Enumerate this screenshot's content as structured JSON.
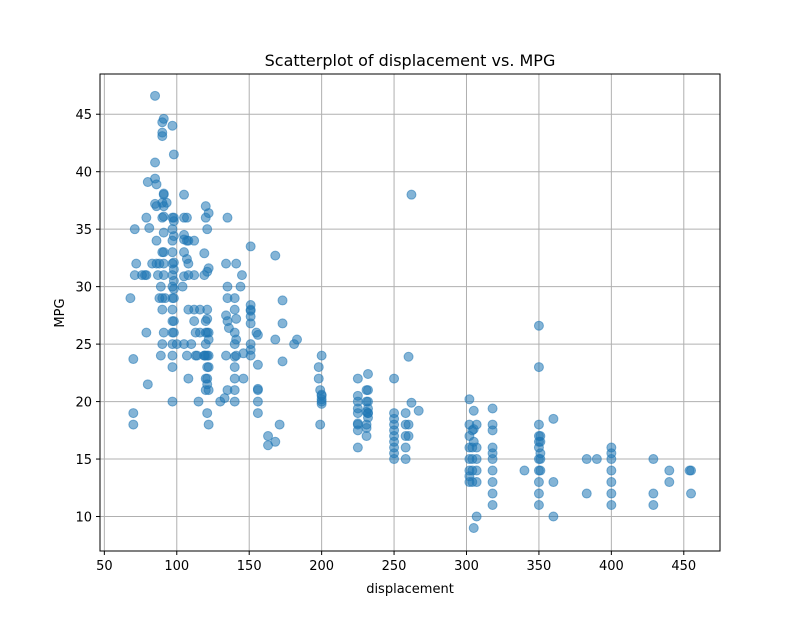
{
  "chart_data": {
    "type": "scatter",
    "title": "Scatterplot of displacement vs. MPG",
    "xlabel": "displacement",
    "ylabel": "MPG",
    "xlim": [
      47,
      475
    ],
    "ylim": [
      7,
      48.5
    ],
    "xticks": [
      50,
      100,
      150,
      200,
      250,
      300,
      350,
      400,
      450
    ],
    "yticks": [
      10,
      15,
      20,
      25,
      30,
      35,
      40,
      45
    ],
    "grid": true,
    "point_color": "#1f77b4",
    "point_alpha": 0.55,
    "points": [
      [
        68,
        29
      ],
      [
        70,
        23.7
      ],
      [
        70,
        19
      ],
      [
        70,
        18
      ],
      [
        71,
        31
      ],
      [
        71,
        35
      ],
      [
        72,
        32
      ],
      [
        76,
        31
      ],
      [
        78,
        31
      ],
      [
        79,
        36
      ],
      [
        79,
        26
      ],
      [
        79,
        31
      ],
      [
        80,
        21.5
      ],
      [
        80,
        39.1
      ],
      [
        81,
        35.1
      ],
      [
        83,
        32
      ],
      [
        85,
        46.6
      ],
      [
        85,
        39.4
      ],
      [
        85,
        37.2
      ],
      [
        85,
        40.8
      ],
      [
        86,
        32
      ],
      [
        86,
        34
      ],
      [
        86,
        38.9
      ],
      [
        86,
        37
      ],
      [
        87,
        31
      ],
      [
        88,
        32
      ],
      [
        88,
        29
      ],
      [
        89,
        30
      ],
      [
        89,
        24
      ],
      [
        90,
        43.4
      ],
      [
        90,
        36
      ],
      [
        90,
        25
      ],
      [
        90,
        44.3
      ],
      [
        90,
        33
      ],
      [
        90,
        28
      ],
      [
        90,
        29
      ],
      [
        90,
        37.3
      ],
      [
        90,
        43.1
      ],
      [
        91,
        38
      ],
      [
        91,
        37
      ],
      [
        91,
        32
      ],
      [
        91,
        44.6
      ],
      [
        91,
        38.1
      ],
      [
        91,
        31
      ],
      [
        91,
        26
      ],
      [
        91,
        36.1
      ],
      [
        91,
        33
      ],
      [
        91,
        34.7
      ],
      [
        92,
        29
      ],
      [
        93,
        37.3
      ],
      [
        97,
        29
      ],
      [
        97,
        30
      ],
      [
        97,
        31
      ],
      [
        97,
        26
      ],
      [
        97,
        27
      ],
      [
        97,
        44
      ],
      [
        97,
        33
      ],
      [
        97,
        28
      ],
      [
        97,
        32
      ],
      [
        97,
        35
      ],
      [
        97,
        36
      ],
      [
        97,
        20
      ],
      [
        97,
        24
      ],
      [
        97,
        25
      ],
      [
        97,
        23
      ],
      [
        97,
        34
      ],
      [
        98,
        29
      ],
      [
        98,
        26
      ],
      [
        98,
        30.5
      ],
      [
        98,
        27
      ],
      [
        98,
        34.4
      ],
      [
        98,
        36
      ],
      [
        98,
        29.8
      ],
      [
        98,
        41.5
      ],
      [
        98,
        31.5
      ],
      [
        98,
        32.1
      ],
      [
        98,
        35.7
      ],
      [
        100,
        25
      ],
      [
        104,
        30
      ],
      [
        105,
        38
      ],
      [
        105,
        34.5
      ],
      [
        105,
        34.1
      ],
      [
        105,
        33
      ],
      [
        105,
        36
      ],
      [
        105,
        30.9
      ],
      [
        105,
        25
      ],
      [
        107,
        34
      ],
      [
        107,
        24
      ],
      [
        107,
        32.4
      ],
      [
        107,
        36
      ],
      [
        108,
        32
      ],
      [
        108,
        34
      ],
      [
        108,
        31
      ],
      [
        108,
        28
      ],
      [
        108,
        22
      ],
      [
        110,
        25
      ],
      [
        112,
        31
      ],
      [
        112,
        34
      ],
      [
        112,
        27
      ],
      [
        112,
        28
      ],
      [
        113,
        24
      ],
      [
        113,
        26
      ],
      [
        114,
        24
      ],
      [
        115,
        20
      ],
      [
        116,
        28
      ],
      [
        116,
        26
      ],
      [
        119,
        24
      ],
      [
        119,
        32.9
      ],
      [
        119,
        24
      ],
      [
        119,
        31
      ],
      [
        120,
        24
      ],
      [
        120,
        27
      ],
      [
        120,
        21
      ],
      [
        120,
        36
      ],
      [
        120,
        25
      ],
      [
        120,
        22
      ],
      [
        120,
        37
      ],
      [
        120,
        26
      ],
      [
        121,
        26
      ],
      [
        121,
        31.3
      ],
      [
        121,
        27.2
      ],
      [
        121,
        28
      ],
      [
        121,
        24
      ],
      [
        121,
        22
      ],
      [
        121,
        19
      ],
      [
        121,
        23
      ],
      [
        121,
        35
      ],
      [
        121,
        21.5
      ],
      [
        122,
        31.6
      ],
      [
        122,
        18
      ],
      [
        122,
        21
      ],
      [
        122,
        36.4
      ],
      [
        122,
        26
      ],
      [
        122,
        25.4
      ],
      [
        122,
        24
      ],
      [
        122,
        23
      ],
      [
        130,
        20
      ],
      [
        133,
        20.3
      ],
      [
        134,
        27.5
      ],
      [
        134,
        24
      ],
      [
        134,
        32
      ],
      [
        135,
        30
      ],
      [
        135,
        29
      ],
      [
        135,
        21
      ],
      [
        135,
        36
      ],
      [
        135,
        27
      ],
      [
        136,
        26.4
      ],
      [
        140,
        29
      ],
      [
        140,
        28
      ],
      [
        140,
        23
      ],
      [
        140,
        22
      ],
      [
        140,
        26
      ],
      [
        140,
        25
      ],
      [
        140,
        21
      ],
      [
        140,
        23.9
      ],
      [
        140,
        20
      ],
      [
        141,
        24
      ],
      [
        141,
        25.4
      ],
      [
        141,
        27.2
      ],
      [
        141,
        32
      ],
      [
        144,
        30
      ],
      [
        145,
        31
      ],
      [
        146,
        22
      ],
      [
        146,
        24.2
      ],
      [
        151,
        28
      ],
      [
        151,
        28.4
      ],
      [
        151,
        27.4
      ],
      [
        151,
        33.5
      ],
      [
        151,
        25
      ],
      [
        151,
        24
      ],
      [
        151,
        24.5
      ],
      [
        151,
        27.9
      ],
      [
        151,
        26.8
      ],
      [
        155,
        26
      ],
      [
        156,
        21.1
      ],
      [
        156,
        23.2
      ],
      [
        156,
        21
      ],
      [
        156,
        20
      ],
      [
        156,
        19
      ],
      [
        156,
        25.8
      ],
      [
        163,
        17
      ],
      [
        163,
        16.2
      ],
      [
        168,
        32.7
      ],
      [
        168,
        25.4
      ],
      [
        168,
        16.5
      ],
      [
        171,
        18
      ],
      [
        173,
        26.8
      ],
      [
        173,
        23.5
      ],
      [
        173,
        28.8
      ],
      [
        181,
        25
      ],
      [
        183,
        25.4
      ],
      [
        198,
        23
      ],
      [
        198,
        22
      ],
      [
        199,
        18
      ],
      [
        199,
        21
      ],
      [
        200,
        24
      ],
      [
        200,
        20.5
      ],
      [
        200,
        20.2
      ],
      [
        200,
        20
      ],
      [
        200,
        20.6
      ],
      [
        200,
        19.8
      ],
      [
        225,
        19
      ],
      [
        225,
        17.5
      ],
      [
        225,
        18.1
      ],
      [
        225,
        20.5
      ],
      [
        225,
        16
      ],
      [
        225,
        19.4
      ],
      [
        225,
        20
      ],
      [
        225,
        18
      ],
      [
        225,
        22
      ],
      [
        231,
        21
      ],
      [
        231,
        20
      ],
      [
        231,
        17.7
      ],
      [
        231,
        18
      ],
      [
        231,
        19.1
      ],
      [
        231,
        17
      ],
      [
        232,
        19
      ],
      [
        232,
        20
      ],
      [
        232,
        21
      ],
      [
        232,
        22.4
      ],
      [
        232,
        18.6
      ],
      [
        232,
        19
      ],
      [
        232,
        19.4
      ],
      [
        250,
        15
      ],
      [
        250,
        16
      ],
      [
        250,
        18
      ],
      [
        250,
        17.5
      ],
      [
        250,
        22
      ],
      [
        250,
        17
      ],
      [
        250,
        19
      ],
      [
        250,
        15.5
      ],
      [
        250,
        16.5
      ],
      [
        250,
        18.5
      ],
      [
        258,
        17
      ],
      [
        258,
        18
      ],
      [
        258,
        15
      ],
      [
        258,
        16
      ],
      [
        258,
        19
      ],
      [
        260,
        23.9
      ],
      [
        260,
        18
      ],
      [
        260,
        17
      ],
      [
        262,
        38
      ],
      [
        262,
        19.9
      ],
      [
        267,
        19.2
      ],
      [
        302,
        20.2
      ],
      [
        302,
        17
      ],
      [
        302,
        15
      ],
      [
        302,
        16
      ],
      [
        302,
        18
      ],
      [
        302,
        13
      ],
      [
        302,
        14
      ],
      [
        302,
        13.5
      ],
      [
        304,
        15
      ],
      [
        304,
        17.5
      ],
      [
        304,
        16
      ],
      [
        304,
        14
      ],
      [
        304,
        13
      ],
      [
        305,
        17.6
      ],
      [
        305,
        19.2
      ],
      [
        305,
        16.5
      ],
      [
        305,
        9
      ],
      [
        307,
        10
      ],
      [
        307,
        14
      ],
      [
        307,
        13
      ],
      [
        307,
        15
      ],
      [
        307,
        18
      ],
      [
        307,
        16
      ],
      [
        318,
        15
      ],
      [
        318,
        14
      ],
      [
        318,
        13
      ],
      [
        318,
        16
      ],
      [
        318,
        15.5
      ],
      [
        318,
        12
      ],
      [
        318,
        11
      ],
      [
        318,
        19.4
      ],
      [
        318,
        18
      ],
      [
        318,
        17.5
      ],
      [
        340,
        14
      ],
      [
        350,
        15
      ],
      [
        350,
        14
      ],
      [
        350,
        13
      ],
      [
        350,
        12
      ],
      [
        350,
        16
      ],
      [
        350,
        17
      ],
      [
        350,
        16.5
      ],
      [
        350,
        26.6
      ],
      [
        350,
        23
      ],
      [
        350,
        11
      ],
      [
        350,
        18
      ],
      [
        351,
        14
      ],
      [
        351,
        15
      ],
      [
        351,
        16.5
      ],
      [
        351,
        15.5
      ],
      [
        351,
        17
      ],
      [
        360,
        10
      ],
      [
        360,
        13
      ],
      [
        360,
        18.5
      ],
      [
        383,
        15
      ],
      [
        383,
        12
      ],
      [
        390,
        15
      ],
      [
        400,
        16
      ],
      [
        400,
        14
      ],
      [
        400,
        13
      ],
      [
        400,
        15
      ],
      [
        400,
        12
      ],
      [
        400,
        11
      ],
      [
        400,
        15.5
      ],
      [
        429,
        11
      ],
      [
        429,
        15
      ],
      [
        429,
        12
      ],
      [
        440,
        13
      ],
      [
        440,
        14
      ],
      [
        454,
        14
      ],
      [
        455,
        14
      ],
      [
        455,
        12
      ]
    ]
  }
}
